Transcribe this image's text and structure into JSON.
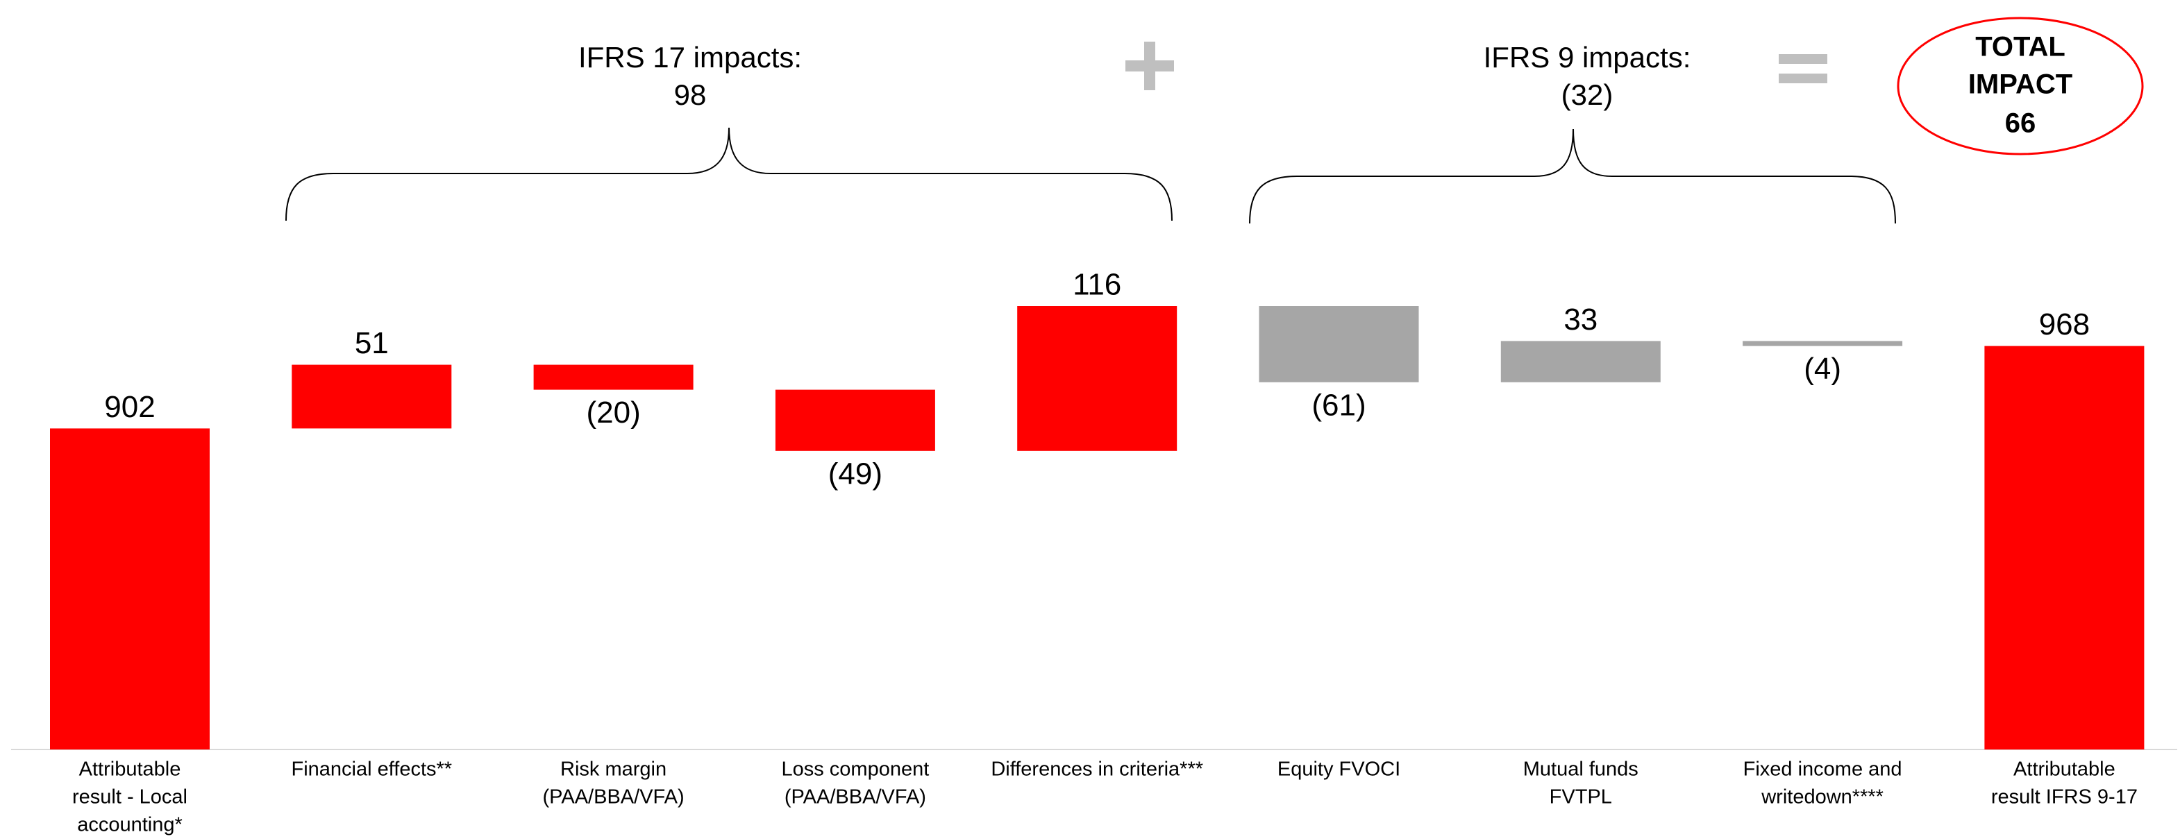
{
  "chart_data": {
    "type": "waterfall",
    "categories": [
      [
        "Attributable",
        "result - Local",
        "accounting*"
      ],
      [
        "Financial effects**"
      ],
      [
        "Risk margin",
        "(PAA/BBA/VFA)"
      ],
      [
        "Loss component",
        "(PAA/BBA/VFA)"
      ],
      [
        "Differences in criteria***"
      ],
      [
        "Equity FVOCI"
      ],
      [
        "Mutual funds",
        "FVTPL"
      ],
      [
        "Fixed income and",
        "writedown****"
      ],
      [
        "Attributable",
        "result IFRS 9-17"
      ]
    ],
    "values": [
      902,
      51,
      -20,
      -49,
      116,
      -61,
      33,
      -4,
      968
    ],
    "value_labels": [
      "902",
      "51",
      "(20)",
      "(49)",
      "116",
      "(61)",
      "33",
      "(4)",
      "968"
    ],
    "measures": [
      "absolute",
      "relative",
      "relative",
      "relative",
      "relative",
      "relative",
      "relative",
      "relative",
      "absolute"
    ],
    "colors": [
      "#ff0000",
      "#ff0000",
      "#ff0000",
      "#ff0000",
      "#ff0000",
      "#a6a6a6",
      "#a6a6a6",
      "#a6a6a6",
      "#ff0000"
    ],
    "ylim": [
      645,
      1245
    ],
    "groups": [
      {
        "label": "IFRS 17 impacts:",
        "value": 98,
        "value_label": "98"
      },
      {
        "label": "IFRS 9 impacts:",
        "value": -32,
        "value_label": "(32)"
      }
    ],
    "total": {
      "label": [
        "TOTAL",
        "IMPACT"
      ],
      "value": 66
    }
  }
}
